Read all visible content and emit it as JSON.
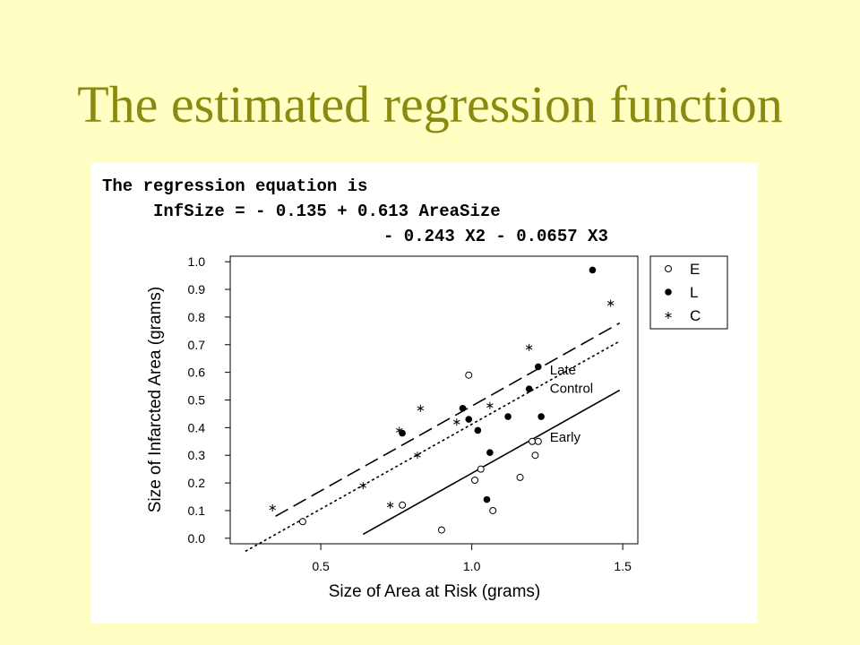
{
  "slide": {
    "title": "The estimated regression function",
    "title_color": "#8b8a10",
    "background": "#ffffc4"
  },
  "equation": {
    "line1": "The regression equation is",
    "line2": "InfSize = - 0.135 + 0.613 AreaSize",
    "line3": "- 0.243 X2 - 0.0657 X3"
  },
  "chart_data": {
    "type": "scatter",
    "xlabel": "Size of Area at Risk (grams)",
    "ylabel": "Size of Infarcted Area (grams)",
    "xlim": [
      0.2,
      1.55
    ],
    "ylim": [
      -0.02,
      1.02
    ],
    "xticks": [
      "0.5",
      "1.0",
      "1.5"
    ],
    "yticks": [
      "0.0",
      "0.1",
      "0.2",
      "0.3",
      "0.4",
      "0.5",
      "0.6",
      "0.7",
      "0.8",
      "0.9",
      "1.0"
    ],
    "grid": false,
    "legend": {
      "position": "top-right",
      "entries": [
        {
          "label": "E",
          "marker": "open-circle"
        },
        {
          "label": "L",
          "marker": "filled-circle"
        },
        {
          "label": "C",
          "marker": "asterisk"
        }
      ]
    },
    "series": [
      {
        "name": "E",
        "marker": "open-circle",
        "x": [
          0.44,
          0.77,
          0.9,
          0.99,
          1.01,
          1.03,
          1.07,
          1.16,
          1.2,
          1.21,
          1.22
        ],
        "y": [
          0.06,
          0.12,
          0.03,
          0.59,
          0.21,
          0.25,
          0.1,
          0.22,
          0.35,
          0.3,
          0.35
        ]
      },
      {
        "name": "L",
        "marker": "filled-circle",
        "x": [
          0.77,
          0.97,
          0.99,
          1.02,
          1.05,
          1.06,
          1.12,
          1.19,
          1.22,
          1.23,
          1.4
        ],
        "y": [
          0.38,
          0.47,
          0.43,
          0.39,
          0.14,
          0.31,
          0.44,
          0.54,
          0.62,
          0.44,
          0.97
        ]
      },
      {
        "name": "C",
        "marker": "asterisk",
        "x": [
          0.34,
          0.64,
          0.73,
          0.76,
          0.82,
          0.83,
          0.95,
          1.06,
          1.19,
          1.46
        ],
        "y": [
          0.11,
          0.19,
          0.12,
          0.39,
          0.3,
          0.47,
          0.42,
          0.48,
          0.69,
          0.85
        ]
      }
    ],
    "fitted_lines": [
      {
        "label": "Control",
        "style": "dotted",
        "intercept": -0.2007,
        "slope": 0.613,
        "x_range": [
          0.25,
          1.49
        ]
      },
      {
        "label": "Late",
        "style": "long-dash",
        "intercept": -0.135,
        "slope": 0.613,
        "x_range": [
          0.35,
          1.49
        ]
      },
      {
        "label": "Early",
        "style": "solid",
        "intercept": -0.378,
        "slope": 0.613,
        "x_range": [
          0.64,
          1.49
        ]
      }
    ]
  }
}
